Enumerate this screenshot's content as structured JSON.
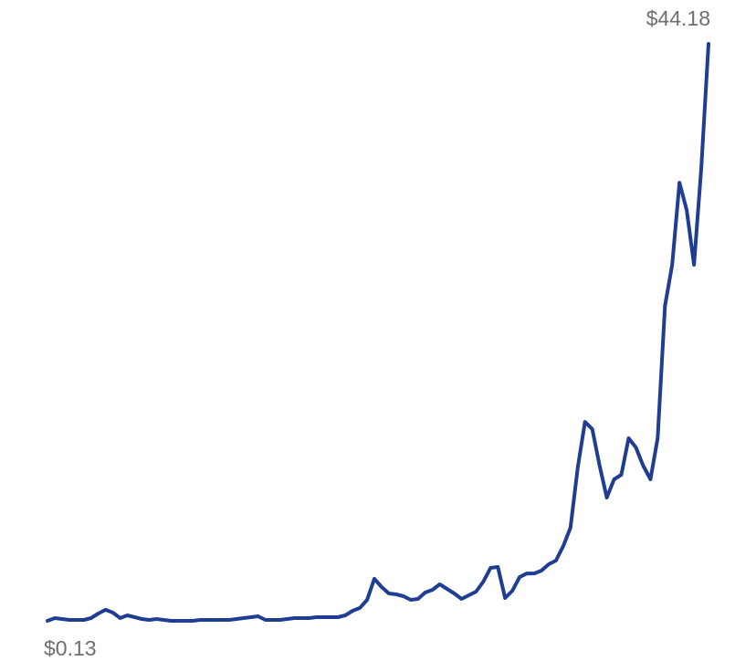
{
  "chart_data": {
    "type": "line",
    "color": "#1f3d92",
    "ylim": [
      0.13,
      44.18
    ],
    "values": [
      0.13,
      0.34,
      0.27,
      0.2,
      0.2,
      0.2,
      0.34,
      0.69,
      0.97,
      0.76,
      0.34,
      0.55,
      0.41,
      0.27,
      0.2,
      0.27,
      0.2,
      0.13,
      0.13,
      0.13,
      0.13,
      0.2,
      0.2,
      0.2,
      0.2,
      0.2,
      0.27,
      0.34,
      0.41,
      0.48,
      0.2,
      0.2,
      0.2,
      0.27,
      0.34,
      0.34,
      0.34,
      0.41,
      0.41,
      0.41,
      0.41,
      0.55,
      0.9,
      1.11,
      1.73,
      3.34,
      2.71,
      2.22,
      2.15,
      2.01,
      1.73,
      1.8,
      2.29,
      2.5,
      2.92,
      2.57,
      2.22,
      1.8,
      2.08,
      2.36,
      3.13,
      4.17,
      4.24,
      1.87,
      2.43,
      3.47,
      3.75,
      3.75,
      3.96,
      4.45,
      4.73,
      5.84,
      7.24,
      11.84,
      15.32,
      14.76,
      11.98,
      9.54,
      10.93,
      11.28,
      14.07,
      13.37,
      11.98,
      10.93,
      14.07,
      24.17,
      27.31,
      33.58,
      31.49,
      27.31,
      34.62,
      44.18
    ],
    "value_labels": [
      "$0.13",
      null,
      null,
      null,
      null,
      null,
      null,
      null,
      null,
      null,
      null,
      null,
      null,
      null,
      null,
      null,
      null,
      null,
      null,
      null,
      null,
      null,
      null,
      null,
      null,
      null,
      null,
      null,
      null,
      null,
      null,
      null,
      null,
      null,
      null,
      null,
      null,
      null,
      null,
      null,
      null,
      null,
      null,
      null,
      null,
      null,
      null,
      null,
      null,
      null,
      null,
      null,
      null,
      null,
      null,
      null,
      null,
      null,
      null,
      null,
      null,
      null,
      null,
      null,
      null,
      null,
      null,
      null,
      null,
      null,
      null,
      null,
      null,
      null,
      null,
      null,
      null,
      null,
      null,
      null,
      null,
      null,
      null,
      null,
      null,
      null,
      null,
      null,
      null,
      null,
      null,
      "$44.18"
    ]
  }
}
